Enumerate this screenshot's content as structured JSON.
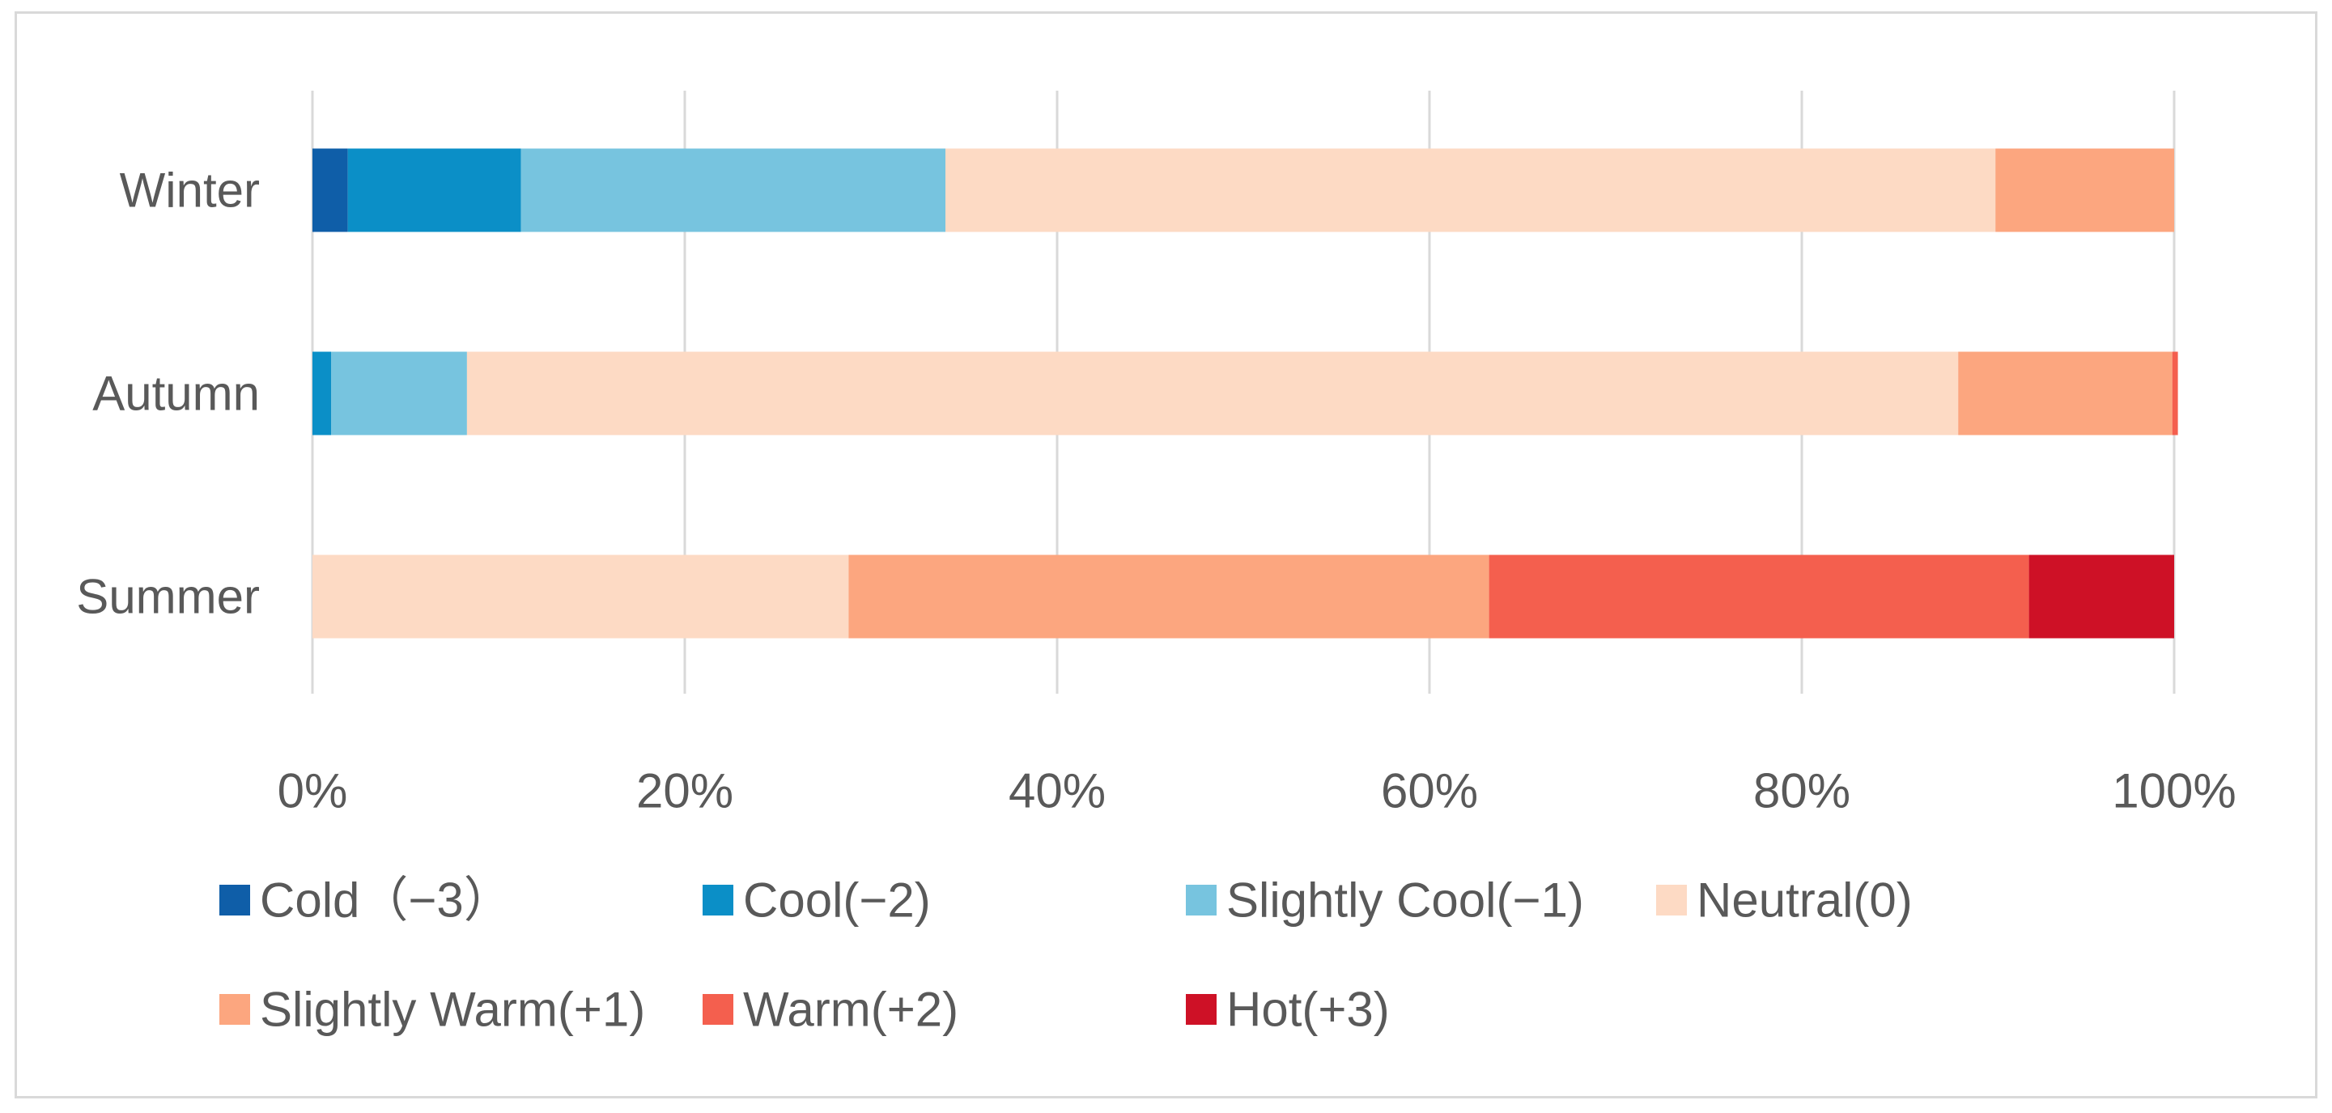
{
  "chart_data": {
    "type": "bar",
    "orientation": "horizontal",
    "stacked": "percent",
    "categories": [
      "Winter",
      "Autumn",
      "Summer"
    ],
    "series": [
      {
        "name": "Cold（−3）",
        "color": "#0f5ea8",
        "values": [
          1.9,
          0,
          0
        ]
      },
      {
        "name": "Cool(−2)",
        "color": "#0b8fc7",
        "values": [
          9.3,
          1.0,
          0
        ]
      },
      {
        "name": "Slightly Cool(−1)",
        "color": "#77c4df",
        "values": [
          22.8,
          7.3,
          0
        ]
      },
      {
        "name": "Neutral(0)",
        "color": "#fddac4",
        "values": [
          56.4,
          80.1,
          28.8
        ]
      },
      {
        "name": "Slightly Warm(+1)",
        "color": "#fca67f",
        "values": [
          9.6,
          11.5,
          34.4
        ]
      },
      {
        "name": "Warm(+2)",
        "color": "#f45f4e",
        "values": [
          0,
          0.3,
          29.0
        ]
      },
      {
        "name": "Hot(+3)",
        "color": "#ce1126",
        "values": [
          0,
          0,
          7.8
        ]
      }
    ],
    "xlim": [
      0,
      100
    ],
    "xticks": [
      "0%",
      "20%",
      "40%",
      "60%",
      "80%",
      "100%"
    ],
    "xtick_values": [
      0,
      20,
      40,
      60,
      80,
      100
    ],
    "grid": "vertical",
    "legend": "bottom",
    "gridline_color": "#d9d9d9"
  }
}
